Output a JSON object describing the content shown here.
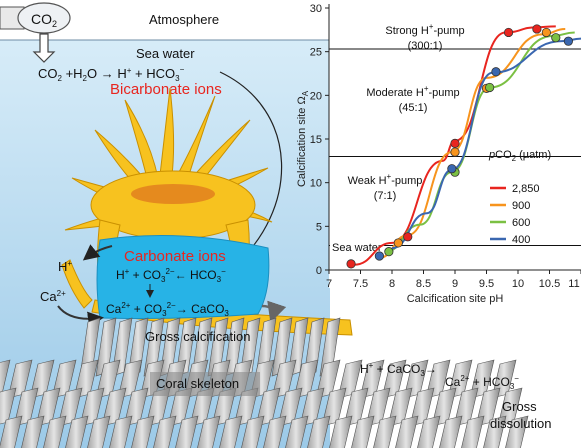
{
  "diagram": {
    "atmosphere_label": "Atmosphere",
    "co2_can_label": "CO",
    "co2_can_sub": "2",
    "sea_water_label": "Sea water",
    "eq1": "CO2 + H2O → H+ + HCO3−",
    "eq1_parts": {
      "a": "CO",
      "a_sub": "2",
      "b": " +H",
      "b_sub": "2",
      "c": "O ",
      "arrow": "→",
      "d": " H",
      "d_sup": "+",
      "e": " + HCO",
      "e_sub": "3",
      "e_sup": "−"
    },
    "bicarbonate_label": "Bicarbonate ions",
    "carbonate_label": "Carbonate ions",
    "h_plus_label": "H+",
    "h_plus_parts": {
      "a": "H",
      "sup": "+"
    },
    "ca_label": "Ca2+",
    "ca_parts": {
      "a": "Ca",
      "sup": "2+"
    },
    "eq2_parts": {
      "a": "H",
      "a_sup": "+",
      "b": " + CO",
      "b_sub": "3",
      "b_sup": "2−",
      "arrow": "←",
      "c": " HCO",
      "c_sub": "3",
      "c_sup": "−"
    },
    "eq3_parts": {
      "a": "Ca",
      "a_sup": "2+",
      "b": " + CO",
      "b_sub": "3",
      "b_sup": "2−",
      "arrow": "→",
      "c": " CaCO",
      "c_sub": "3"
    },
    "gross_calcification_label": "Gross calcification",
    "coral_skeleton_label": "Coral skeleton",
    "dissolution_eq_parts": {
      "a": "H",
      "a_sup": "+",
      "b": " + CaCO",
      "b_sub": "3",
      "arrow": "→"
    },
    "dissolution_eq2_parts": {
      "a": "Ca",
      "a_sup": "2+",
      "b": " + HCO",
      "b_sub": "3",
      "b_sup": "−"
    },
    "gross_dissolution_label_1": "Gross",
    "gross_dissolution_label_2": "dissolution"
  },
  "chart_data": {
    "type": "line",
    "xlabel": "Calcification site pH",
    "ylabel": "Calcification site Ω",
    "ylabel_sub": "A",
    "xlim": [
      7,
      11
    ],
    "ylim": [
      0,
      30
    ],
    "xticks": [
      7,
      7.5,
      8,
      8.5,
      9,
      9.5,
      10,
      10.5,
      11
    ],
    "xtick_labels": [
      "7",
      "7.5",
      "8",
      "8.5",
      "9",
      "9.5",
      "10",
      "10.5",
      "11"
    ],
    "yticks": [
      0,
      5,
      10,
      15,
      20,
      25,
      30
    ],
    "ytick_labels": [
      "0",
      "5",
      "10",
      "15",
      "20",
      "25",
      "30"
    ],
    "legend_title": "pCO2 (µatm)",
    "legend_title_parts": {
      "p": "p",
      "co": "CO",
      "sub": "2",
      "unit": " (µatm)"
    },
    "legend_position": "right",
    "regimes": [
      {
        "label_line1": "Strong H+-pump",
        "label_parts": {
          "a": "Strong H",
          "sup": "+",
          "b": "-pump"
        },
        "label_line2": "(300:1)",
        "y": 25.3
      },
      {
        "label_line1": "Moderate H+-pump",
        "label_parts": {
          "a": "Moderate H",
          "sup": "+",
          "b": "-pump"
        },
        "label_line2": "(45:1)",
        "y": 13
      },
      {
        "label_line1": "Weak H+-pump",
        "label_parts": {
          "a": "Weak H",
          "sup": "+",
          "b": "-pump"
        },
        "label_line2": "(7:1)",
        "y": 2.8
      },
      {
        "label_line1": "Sea water",
        "label_line2": "",
        "y": 0
      }
    ],
    "series": [
      {
        "name": "2,850",
        "color": "#e8251f",
        "points": [
          [
            7.4,
            0.6
          ],
          [
            8.0,
            3.1
          ],
          [
            8.8,
            12.5
          ],
          [
            9.0,
            14.8
          ],
          [
            9.8,
            27.2
          ],
          [
            10.3,
            27.8
          ],
          [
            10.6,
            27.9
          ]
        ]
      },
      {
        "name": "900",
        "color": "#f7941d",
        "points": [
          [
            7.8,
            1.4
          ],
          [
            8.25,
            4.0
          ],
          [
            8.95,
            13.5
          ],
          [
            9.5,
            22.0
          ],
          [
            10.4,
            27.0
          ],
          [
            10.75,
            27.6
          ]
        ]
      },
      {
        "name": "600",
        "color": "#7bc043",
        "points": [
          [
            7.9,
            2.1
          ],
          [
            8.45,
            5.2
          ],
          [
            8.95,
            11.2
          ],
          [
            9.55,
            20.9
          ],
          [
            10.55,
            26.8
          ],
          [
            10.9,
            27.2
          ]
        ]
      },
      {
        "name": "400",
        "color": "#3a67b0",
        "points": [
          [
            8.0,
            2.5
          ],
          [
            8.55,
            6.5
          ],
          [
            8.95,
            11.5
          ],
          [
            9.6,
            22.6
          ],
          [
            10.7,
            26.2
          ],
          [
            11.0,
            26.5
          ]
        ]
      }
    ],
    "markers": [
      {
        "s": 0,
        "x": 7.35,
        "y": 0.7
      },
      {
        "s": 0,
        "x": 8.25,
        "y": 3.8
      },
      {
        "s": 0,
        "x": 9.0,
        "y": 14.5
      },
      {
        "s": 0,
        "x": 9.85,
        "y": 27.2
      },
      {
        "s": 0,
        "x": 10.3,
        "y": 27.6
      },
      {
        "s": 1,
        "x": 8.1,
        "y": 3.1
      },
      {
        "s": 1,
        "x": 9.0,
        "y": 13.5
      },
      {
        "s": 1,
        "x": 9.5,
        "y": 20.8
      },
      {
        "s": 1,
        "x": 10.45,
        "y": 27.2
      },
      {
        "s": 2,
        "x": 7.95,
        "y": 2.1
      },
      {
        "s": 2,
        "x": 9.0,
        "y": 11.2
      },
      {
        "s": 2,
        "x": 9.55,
        "y": 20.9
      },
      {
        "s": 2,
        "x": 10.6,
        "y": 26.6
      },
      {
        "s": 3,
        "x": 7.8,
        "y": 1.6
      },
      {
        "s": 3,
        "x": 8.95,
        "y": 11.6
      },
      {
        "s": 3,
        "x": 9.65,
        "y": 22.7
      },
      {
        "s": 3,
        "x": 10.8,
        "y": 26.2
      }
    ]
  }
}
